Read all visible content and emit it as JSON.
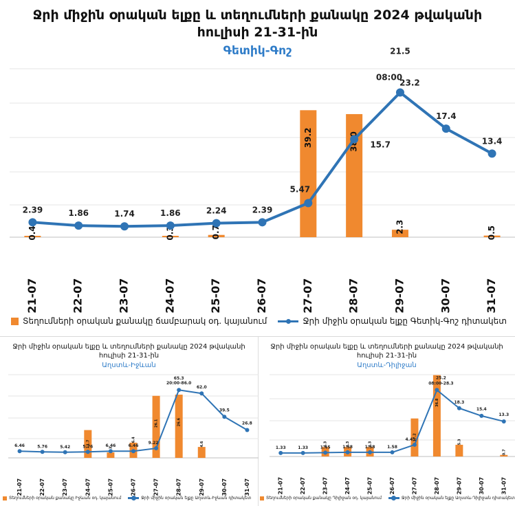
{
  "colors": {
    "bar": "#f0892f",
    "line": "#2f74b5",
    "subtitle": "#2f7cc8",
    "grid": "#e4e4e4"
  },
  "charts": {
    "main": {
      "title1": "Ջրի միջին օրական ելքը և տեղումների քանակը 2024 թվականի",
      "title2": "հուլիսի 21-31-ին",
      "subtitle": "Գետիկ-Գոշ",
      "legend_bar": "Տեղումների օրական քանակը ճամբարակ օդ. կայանում",
      "legend_line": "Ջրի միջին օրական ելքը Գետիկ-Գոշ դիտակետ"
    },
    "left": {
      "title1": "Ջրի միջին օրական ելքը և տեղումների քանակը 2024 թվականի",
      "title2": "հուլիսի 21-31-ին",
      "subtitle": "Աղստև-Իջևան",
      "legend_bar": "Տեղումների օրական քանակը Իջևան օդ. կայանում",
      "legend_line": "Ջրի միջին օրական ելքը Աղստև-Իջևան դիտակետ"
    },
    "right": {
      "title1": "Ջրի միջին օրական ելքը և տեղումների քանակը 2024 թվականի",
      "title2": "հուլիսի 21-31-ին",
      "subtitle": "Աղստև-Դիլիջան",
      "legend_bar": "Տեղումների օրական քանակը Դիլիջան օդ. կայանում",
      "legend_line": "Ջրի միջին օրական ելքը Աղստև-Դիլիջան դիտակետ"
    }
  },
  "chart_data": [
    {
      "type": "bar+line",
      "title": "Ջրի միջին օրական ելքը և տեղումների քանակը 2024 թվականի հուլիսի 21-31-ին",
      "subtitle": "Գետիկ-Գոշ",
      "categories": [
        "21-07",
        "22-07",
        "23-07",
        "24-07",
        "25-07",
        "26-07",
        "27-07",
        "28-07",
        "29-07",
        "30-07",
        "31-07"
      ],
      "ylim_bar": [
        0,
        52
      ],
      "ylim_line": [
        0,
        27
      ],
      "series": [
        {
          "name": "Տեղումների օրական քանակը ճամբարակ օդ. կայանում",
          "type": "bar",
          "values": [
            0.4,
            null,
            null,
            0.3,
            0.7,
            null,
            39.2,
            38.0,
            2.3,
            null,
            0.5
          ],
          "labels": [
            "0.4",
            "",
            "",
            "0.3",
            "0.7",
            "",
            "39.2",
            "38.0",
            "2.3",
            "",
            "0.5"
          ]
        },
        {
          "name": "Ջրի միջին օրական ելքը Գետիկ-Գոշ դիտակետ",
          "type": "line",
          "values": [
            2.39,
            1.86,
            1.74,
            1.86,
            2.24,
            2.39,
            5.47,
            15.7,
            23.2,
            17.4,
            13.4
          ],
          "labels": [
            "2.39",
            "1.86",
            "1.74",
            "1.86",
            "2.24",
            "2.39",
            "5.47",
            "15.7",
            "23.2",
            "17.4",
            "13.4"
          ]
        }
      ],
      "annotations": [
        {
          "category": "29-07",
          "text": "21.5"
        },
        {
          "category": "29-07",
          "text": "08:00"
        }
      ]
    },
    {
      "type": "bar+line",
      "title": "Ջրի միջին օրական ելքը և տեղումների քանակը 2024 թվականի հուլիսի 21-31-ին",
      "subtitle": "Աղստև-Իջևան",
      "categories": [
        "21-07",
        "22-07",
        "23-07",
        "24-07",
        "25-07",
        "26-07",
        "27-07",
        "28-07",
        "29-07",
        "30-07",
        "31-07"
      ],
      "ylim_bar": [
        0,
        35
      ],
      "ylim_line": [
        0,
        80
      ],
      "series": [
        {
          "name": "Տեղումների օրական քանակը Իջևան օդ. կայանում",
          "type": "bar",
          "values": [
            null,
            null,
            null,
            11.7,
            2.3,
            6.4,
            26.1,
            26.6,
            4.6,
            null,
            null
          ],
          "labels": [
            "",
            "",
            "",
            "11.7",
            "2.3",
            "6.4",
            "26.1",
            "26.6",
            "4.6",
            "",
            ""
          ]
        },
        {
          "name": "Ջրի միջին օրական ելքը Աղստև-Իջևան դիտակետ",
          "type": "line",
          "values": [
            6.46,
            5.76,
            5.42,
            5.76,
            6.46,
            6.46,
            9.22,
            65.3,
            62.0,
            39.5,
            26.8
          ],
          "labels": [
            "6.46",
            "5.76",
            "5.42",
            "5.76",
            "6.46",
            "6.46",
            "9.22",
            "65.3",
            "62.0",
            "39.5",
            "26.8"
          ]
        }
      ],
      "annotations": [
        {
          "category": "28-07",
          "text": "20:00-86.0"
        }
      ]
    },
    {
      "type": "bar+line",
      "title": "Ջրի միջին օրական ելքը և տեղումների քանակը 2024 թվականի հուլիսի 21-31-ին",
      "subtitle": "Աղստև-Դիլիջան",
      "categories": [
        "21-07",
        "22-07",
        "23-07",
        "24-07",
        "25-07",
        "26-07",
        "27-07",
        "28-07",
        "29-07",
        "30-07",
        "31-07"
      ],
      "ylim_bar": [
        0,
        37
      ],
      "ylim_line": [
        0,
        31
      ],
      "series": [
        {
          "name": "Տեղումների օրական քանակը Դիլիջան օդ. կայանում",
          "type": "bar",
          "values": [
            null,
            null,
            4.3,
            4.3,
            4.3,
            null,
            17.2,
            36.8,
            5.3,
            null,
            0.7
          ],
          "labels": [
            "",
            "",
            "4.3",
            "4.3",
            "4.3",
            "",
            "17.2",
            "36.8",
            "5.3",
            "",
            "0.7"
          ]
        },
        {
          "name": "Ջրի միջին օրական ելքը Աղստև-Դիլիջան դիտակետ",
          "type": "line",
          "values": [
            1.33,
            1.33,
            1.45,
            1.58,
            1.58,
            1.58,
            4.45,
            25.2,
            18.3,
            15.4,
            13.3
          ],
          "labels": [
            "1.33",
            "1.33",
            "1.45",
            "1.58",
            "1.58",
            "1.58",
            "4.45",
            "25.2",
            "18.3",
            "15.4",
            "13.3"
          ]
        }
      ],
      "annotations": [
        {
          "category": "28-07",
          "text": "08:00-28.3"
        }
      ]
    }
  ]
}
